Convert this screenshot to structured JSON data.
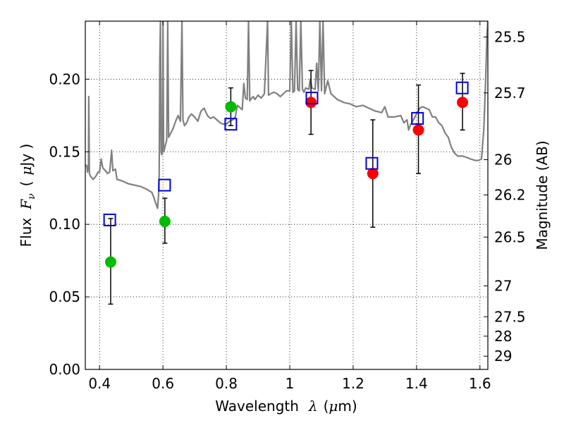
{
  "chart_data": {
    "type": "scatter",
    "xlabel": {
      "prefix": "Wavelength",
      "symbol": "λ",
      "unit_open": "(",
      "unit_mu": "μ",
      "unit_rest": "m)"
    },
    "ylabel": {
      "prefix": "Flux",
      "symbol": "F",
      "subscript": "ν",
      "unit_open": "(",
      "unit_mu": "μ",
      "unit_rest": "Jy )"
    },
    "y2label": "Magnitude (AB)",
    "xlim": [
      0.355,
      1.625
    ],
    "ylim": [
      0.0,
      0.24
    ],
    "grid": true,
    "x_ticks": [
      0.4,
      0.6,
      0.8,
      1.0,
      1.2,
      1.4,
      1.6
    ],
    "x_tick_labels": [
      "0.4",
      "0.6",
      "0.8",
      "1",
      "1.2",
      "1.4",
      "1.6"
    ],
    "y_ticks": [
      0.0,
      0.05,
      0.1,
      0.15,
      0.2
    ],
    "y_tick_labels": [
      "0.00",
      "0.05",
      "0.10",
      "0.15",
      "0.20"
    ],
    "mag_ticks": [
      25.5,
      25.7,
      26,
      26.2,
      26.5,
      27,
      27.5,
      28,
      29
    ],
    "mag_tick_labels": [
      "25.5",
      "25.7",
      "26",
      "26.2",
      "26.5",
      "27",
      "27.5",
      "28",
      "29"
    ],
    "series": [
      {
        "color": "#00bb00",
        "marker": "circle",
        "points": [
          {
            "x": 0.435,
            "y": 0.074,
            "err_low": 0.045,
            "err_high": 0.104
          },
          {
            "x": 0.606,
            "y": 0.102,
            "err_low": 0.087,
            "err_high": 0.118
          },
          {
            "x": 0.814,
            "y": 0.181,
            "err_low": 0.168,
            "err_high": 0.194
          }
        ]
      },
      {
        "color": "#ff0000",
        "marker": "circle",
        "points": [
          {
            "x": 1.067,
            "y": 0.184,
            "err_low": 0.162,
            "err_high": 0.206
          },
          {
            "x": 1.262,
            "y": 0.135,
            "err_low": 0.098,
            "err_high": 0.172
          },
          {
            "x": 1.406,
            "y": 0.165,
            "err_low": 0.135,
            "err_high": 0.196
          },
          {
            "x": 1.545,
            "y": 0.184,
            "err_low": 0.165,
            "err_high": 0.204
          }
        ]
      },
      {
        "color": "#0000dd",
        "marker": "open-square",
        "points": [
          {
            "x": 0.432,
            "y": 0.103
          },
          {
            "x": 0.605,
            "y": 0.127
          },
          {
            "x": 0.814,
            "y": 0.169
          },
          {
            "x": 1.07,
            "y": 0.187
          },
          {
            "x": 1.259,
            "y": 0.142
          },
          {
            "x": 1.403,
            "y": 0.173
          },
          {
            "x": 1.544,
            "y": 0.194
          }
        ]
      }
    ],
    "model_spectrum": {
      "color": "#808080",
      "points": [
        [
          0.355,
          0.141
        ],
        [
          0.36,
          0.14
        ],
        [
          0.362,
          0.136
        ],
        [
          0.365,
          0.142
        ],
        [
          0.366,
          0.188
        ],
        [
          0.368,
          0.135
        ],
        [
          0.372,
          0.133
        ],
        [
          0.38,
          0.131
        ],
        [
          0.388,
          0.133
        ],
        [
          0.395,
          0.136
        ],
        [
          0.4,
          0.136
        ],
        [
          0.405,
          0.145
        ],
        [
          0.41,
          0.139
        ],
        [
          0.418,
          0.137
        ],
        [
          0.425,
          0.135
        ],
        [
          0.432,
          0.136
        ],
        [
          0.438,
          0.151
        ],
        [
          0.442,
          0.137
        ],
        [
          0.45,
          0.138
        ],
        [
          0.455,
          0.131
        ],
        [
          0.47,
          0.13
        ],
        [
          0.49,
          0.128
        ],
        [
          0.51,
          0.127
        ],
        [
          0.53,
          0.126
        ],
        [
          0.55,
          0.124
        ],
        [
          0.565,
          0.122
        ],
        [
          0.572,
          0.118
        ],
        [
          0.578,
          0.114
        ],
        [
          0.583,
          0.111
        ],
        [
          0.586,
          0.12
        ],
        [
          0.588,
          0.135
        ],
        [
          0.59,
          0.215
        ],
        [
          0.592,
          0.24
        ],
        [
          0.594,
          0.15
        ],
        [
          0.596,
          0.148
        ],
        [
          0.598,
          0.15
        ],
        [
          0.6,
          0.24
        ],
        [
          0.602,
          0.15
        ],
        [
          0.605,
          0.152
        ],
        [
          0.608,
          0.155
        ],
        [
          0.612,
          0.158
        ],
        [
          0.615,
          0.24
        ],
        [
          0.618,
          0.16
        ],
        [
          0.625,
          0.163
        ],
        [
          0.632,
          0.166
        ],
        [
          0.64,
          0.171
        ],
        [
          0.648,
          0.175
        ],
        [
          0.655,
          0.171
        ],
        [
          0.66,
          0.24
        ],
        [
          0.663,
          0.172
        ],
        [
          0.668,
          0.168
        ],
        [
          0.675,
          0.17
        ],
        [
          0.682,
          0.174
        ],
        [
          0.69,
          0.176
        ],
        [
          0.7,
          0.174
        ],
        [
          0.71,
          0.171
        ],
        [
          0.72,
          0.178
        ],
        [
          0.73,
          0.18
        ],
        [
          0.74,
          0.175
        ],
        [
          0.75,
          0.173
        ],
        [
          0.76,
          0.174
        ],
        [
          0.77,
          0.172
        ],
        [
          0.78,
          0.17
        ],
        [
          0.79,
          0.169
        ],
        [
          0.8,
          0.169
        ],
        [
          0.81,
          0.171
        ],
        [
          0.82,
          0.172
        ],
        [
          0.828,
          0.174
        ],
        [
          0.835,
          0.182
        ],
        [
          0.845,
          0.18
        ],
        [
          0.85,
          0.179
        ],
        [
          0.855,
          0.197
        ],
        [
          0.86,
          0.187
        ],
        [
          0.866,
          0.186
        ],
        [
          0.87,
          0.24
        ],
        [
          0.874,
          0.185
        ],
        [
          0.88,
          0.187
        ],
        [
          0.885,
          0.188
        ],
        [
          0.89,
          0.186
        ],
        [
          0.9,
          0.189
        ],
        [
          0.91,
          0.187
        ],
        [
          0.92,
          0.19
        ],
        [
          0.93,
          0.24
        ],
        [
          0.933,
          0.189
        ],
        [
          0.94,
          0.19
        ],
        [
          0.95,
          0.191
        ],
        [
          0.96,
          0.19
        ],
        [
          0.97,
          0.188
        ],
        [
          0.98,
          0.19
        ],
        [
          0.99,
          0.192
        ],
        [
          1.0,
          0.192
        ],
        [
          1.005,
          0.24
        ],
        [
          1.01,
          0.191
        ],
        [
          1.015,
          0.192
        ],
        [
          1.02,
          0.24
        ],
        [
          1.025,
          0.193
        ],
        [
          1.03,
          0.192
        ],
        [
          1.035,
          0.24
        ],
        [
          1.04,
          0.193
        ],
        [
          1.045,
          0.191
        ],
        [
          1.05,
          0.194
        ],
        [
          1.06,
          0.193
        ],
        [
          1.065,
          0.2
        ],
        [
          1.07,
          0.194
        ],
        [
          1.08,
          0.193
        ],
        [
          1.085,
          0.211
        ],
        [
          1.09,
          0.192
        ],
        [
          1.095,
          0.24
        ],
        [
          1.1,
          0.192
        ],
        [
          1.105,
          0.24
        ],
        [
          1.11,
          0.19
        ],
        [
          1.12,
          0.199
        ],
        [
          1.13,
          0.19
        ],
        [
          1.15,
          0.186
        ],
        [
          1.17,
          0.184
        ],
        [
          1.19,
          0.183
        ],
        [
          1.21,
          0.181
        ],
        [
          1.23,
          0.182
        ],
        [
          1.25,
          0.18
        ],
        [
          1.27,
          0.178
        ],
        [
          1.29,
          0.177
        ],
        [
          1.3,
          0.181
        ],
        [
          1.31,
          0.174
        ],
        [
          1.33,
          0.174
        ],
        [
          1.35,
          0.175
        ],
        [
          1.36,
          0.17
        ],
        [
          1.37,
          0.172
        ],
        [
          1.375,
          0.165
        ],
        [
          1.38,
          0.168
        ],
        [
          1.39,
          0.172
        ],
        [
          1.4,
          0.176
        ],
        [
          1.41,
          0.18
        ],
        [
          1.42,
          0.181
        ],
        [
          1.43,
          0.18
        ],
        [
          1.44,
          0.179
        ],
        [
          1.45,
          0.174
        ],
        [
          1.46,
          0.174
        ],
        [
          1.47,
          0.17
        ],
        [
          1.48,
          0.168
        ],
        [
          1.49,
          0.163
        ],
        [
          1.5,
          0.16
        ],
        [
          1.51,
          0.153
        ],
        [
          1.52,
          0.149
        ],
        [
          1.53,
          0.147
        ],
        [
          1.545,
          0.147
        ],
        [
          1.56,
          0.146
        ],
        [
          1.57,
          0.145
        ],
        [
          1.585,
          0.144
        ],
        [
          1.595,
          0.144
        ],
        [
          1.605,
          0.145
        ],
        [
          1.612,
          0.165
        ],
        [
          1.618,
          0.2
        ],
        [
          1.622,
          0.23
        ],
        [
          1.625,
          0.24
        ]
      ]
    }
  }
}
